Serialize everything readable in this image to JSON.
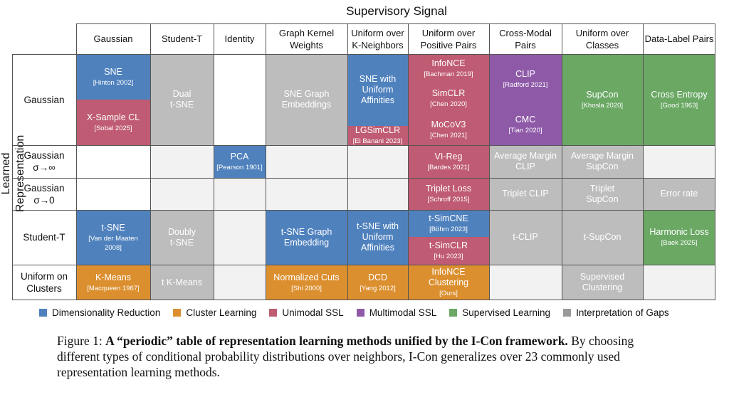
{
  "header": {
    "supervisory_signal": "Supervisory Signal",
    "learned_representation": "Learned Representation"
  },
  "columns": [
    "Gaussian",
    "Student-T",
    "Identity",
    "Graph Kernel Weights",
    "Uniform over K-Neighbors",
    "Uniform over Positive Pairs",
    "Cross-Modal Pairs",
    "Uniform over Classes",
    "Data-Label Pairs"
  ],
  "rows": [
    "Gaussian",
    "Gaussian\nσ→∞",
    "Gaussian\nσ→0",
    "Student-T",
    "Uniform on\nClusters"
  ],
  "cells": [
    {
      "name": "SNE",
      "cite": "[Hinton 2002]",
      "cat": "dim"
    },
    {
      "name": "X-Sample CL",
      "cite": "[Sobal 2025]",
      "cat": "uni"
    },
    {
      "name": "Dual\nt-SNE",
      "cite": "",
      "cat": "gap"
    },
    {
      "name": "SNE Graph\nEmbeddings",
      "cite": "",
      "cat": "gap"
    },
    {
      "name": "SNE with\nUniform\nAffinities",
      "cite": "",
      "cat": "dim"
    },
    {
      "name": "LGSimCLR",
      "cite": "[El Banani 2023]",
      "cat": "uni"
    },
    {
      "name": "InfoNCE",
      "cite": "[Bachman 2019]",
      "cat": "uni"
    },
    {
      "name": "SimCLR",
      "cite": "[Chen 2020]",
      "cat": "uni"
    },
    {
      "name": "MoCoV3",
      "cite": "[Chen 2021]",
      "cat": "uni"
    },
    {
      "name": "CLIP",
      "cite": "[Radford 2021]",
      "cat": "mm"
    },
    {
      "name": "CMC",
      "cite": "[Tian 2020]",
      "cat": "mm"
    },
    {
      "name": "SupCon",
      "cite": "[Khosla 2020]",
      "cat": "sup"
    },
    {
      "name": "Cross Entropy",
      "cite": "[Good 1963]",
      "cat": "sup"
    },
    {
      "name": "PCA",
      "cite": "[Pearson 1901]",
      "cat": "dim"
    },
    {
      "name": "VI-Reg",
      "cite": "[Bardes 2021]",
      "cat": "uni"
    },
    {
      "name": "Average Margin\nCLIP",
      "cite": "",
      "cat": "gap"
    },
    {
      "name": "Average Margin\nSupCon",
      "cite": "",
      "cat": "gap"
    },
    {
      "name": "Triplet Loss",
      "cite": "[Schroff 2015]",
      "cat": "uni"
    },
    {
      "name": "Triplet CLIP",
      "cite": "",
      "cat": "gap"
    },
    {
      "name": "Triplet\nSupCon",
      "cite": "",
      "cat": "gap"
    },
    {
      "name": "Error rate",
      "cite": "",
      "cat": "gap"
    },
    {
      "name": "t-SNE",
      "cite": "[Van der Maaten\n2008]",
      "cat": "dim"
    },
    {
      "name": "Doubly\nt-SNE",
      "cite": "",
      "cat": "gap"
    },
    {
      "name": "t-SNE Graph\nEmbedding",
      "cite": "",
      "cat": "dim"
    },
    {
      "name": "t-SNE with\nUniform\nAffinities",
      "cite": "",
      "cat": "dim"
    },
    {
      "name": "t-SimCNE",
      "cite": "[Böhm 2023]",
      "cat": "dim"
    },
    {
      "name": "t-SimCLR",
      "cite": "[Hu 2023]",
      "cat": "uni"
    },
    {
      "name": "t-CLIP",
      "cite": "",
      "cat": "gap"
    },
    {
      "name": "t-SupCon",
      "cite": "",
      "cat": "gap"
    },
    {
      "name": "Harmonic Loss",
      "cite": "[Baek 2025]",
      "cat": "sup"
    },
    {
      "name": "K-Means",
      "cite": "[Macqueen 1967]",
      "cat": "clu"
    },
    {
      "name": "t K-Means",
      "cite": "",
      "cat": "gap"
    },
    {
      "name": "Normalized Cuts",
      "cite": "[Shi 2000]",
      "cat": "clu"
    },
    {
      "name": "DCD",
      "cite": "[Yang 2012]",
      "cat": "clu"
    },
    {
      "name": "InfoNCE\nClustering",
      "cite": "[Ours]",
      "cat": "clu"
    },
    {
      "name": "Supervised\nClustering",
      "cite": "",
      "cat": "gap"
    }
  ],
  "legend": [
    {
      "label": "Dimensionality Reduction",
      "color": "#4f81bd"
    },
    {
      "label": "Cluster Learning",
      "color": "#dc8f2f"
    },
    {
      "label": "Unimodal SSL",
      "color": "#bf5b72"
    },
    {
      "label": "Multimodal SSL",
      "color": "#8e5aa8"
    },
    {
      "label": "Supervised Learning",
      "color": "#6aa864"
    },
    {
      "label": "Interpretation of Gaps",
      "color": "#999999"
    }
  ],
  "caption": {
    "prefix": "Figure 1: ",
    "bold": "A “periodic” table of representation learning methods unified by the I-Con framework.",
    "rest": " By choosing different types of conditional probability distributions over neighbors, I-Con generalizes over 23 commonly used representation learning methods."
  }
}
